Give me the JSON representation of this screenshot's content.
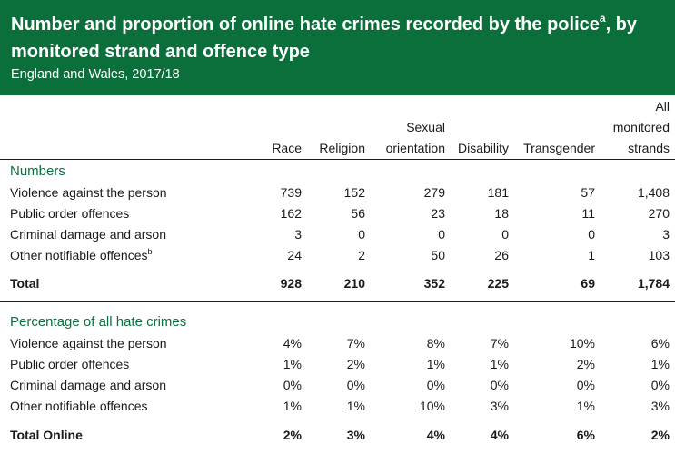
{
  "header": {
    "title": "Number and proportion of online hate crimes recorded by the police",
    "title_sup": "a",
    "title_cont": ", by monitored strand and offence type",
    "subtitle": "England and Wales, 2017/18"
  },
  "columns": [
    [
      "Race"
    ],
    [
      "Religion"
    ],
    [
      "Sexual",
      "orientation"
    ],
    [
      "Disability"
    ],
    [
      "Transgender"
    ],
    [
      "All",
      "monitored",
      "strands"
    ]
  ],
  "sections": [
    {
      "heading": "Numbers",
      "rows": [
        {
          "label": "Violence against the person",
          "sup": "",
          "values": [
            "739",
            "152",
            "279",
            "181",
            "57",
            "1,408"
          ]
        },
        {
          "label": "Public order offences",
          "sup": "",
          "values": [
            "162",
            "56",
            "23",
            "18",
            "11",
            "270"
          ]
        },
        {
          "label": "Criminal damage and arson",
          "sup": "",
          "values": [
            "3",
            "0",
            "0",
            "0",
            "0",
            "3"
          ]
        },
        {
          "label": "Other notifiable offences",
          "sup": "b",
          "values": [
            "24",
            "2",
            "50",
            "26",
            "1",
            "103"
          ]
        }
      ],
      "total": {
        "label": "Total",
        "values": [
          "928",
          "210",
          "352",
          "225",
          "69",
          "1,784"
        ]
      }
    },
    {
      "heading": "Percentage of all hate crimes",
      "rows": [
        {
          "label": "Violence against the person",
          "sup": "",
          "values": [
            "4%",
            "7%",
            "8%",
            "7%",
            "10%",
            "6%"
          ]
        },
        {
          "label": "Public order offences",
          "sup": "",
          "values": [
            "1%",
            "2%",
            "1%",
            "1%",
            "2%",
            "1%"
          ]
        },
        {
          "label": "Criminal damage and arson",
          "sup": "",
          "values": [
            "0%",
            "0%",
            "0%",
            "0%",
            "0%",
            "0%"
          ]
        },
        {
          "label": "Other notifiable offences",
          "sup": "",
          "values": [
            "1%",
            "1%",
            "10%",
            "3%",
            "1%",
            "3%"
          ]
        }
      ],
      "total": {
        "label": "Total Online",
        "values": [
          "2%",
          "3%",
          "4%",
          "4%",
          "6%",
          "2%"
        ]
      }
    }
  ],
  "colors": {
    "brand_green": "#0b6f3c",
    "text": "#1a1a1a"
  }
}
